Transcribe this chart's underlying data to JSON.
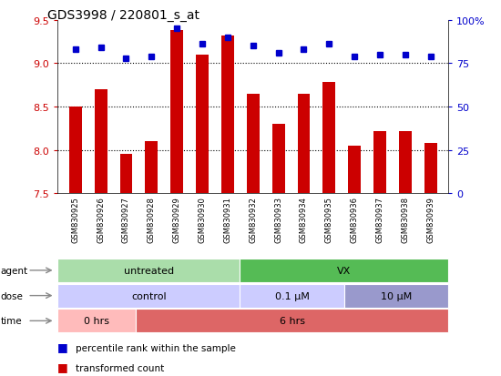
{
  "title": "GDS3998 / 220801_s_at",
  "samples": [
    "GSM830925",
    "GSM830926",
    "GSM830927",
    "GSM830928",
    "GSM830929",
    "GSM830930",
    "GSM830931",
    "GSM830932",
    "GSM830933",
    "GSM830934",
    "GSM830935",
    "GSM830936",
    "GSM830937",
    "GSM830938",
    "GSM830939"
  ],
  "transformed_counts": [
    8.5,
    8.7,
    7.95,
    8.1,
    9.38,
    9.1,
    9.32,
    8.65,
    8.3,
    8.65,
    8.78,
    8.05,
    8.22,
    8.22,
    8.08
  ],
  "percentile_ranks": [
    83,
    84,
    78,
    79,
    95,
    86,
    90,
    85,
    81,
    83,
    86,
    79,
    80,
    80,
    79
  ],
  "ylim_left": [
    7.5,
    9.5
  ],
  "ylim_right": [
    0,
    100
  ],
  "yticks_left": [
    7.5,
    8.0,
    8.5,
    9.0,
    9.5
  ],
  "yticks_right": [
    0,
    25,
    50,
    75,
    100
  ],
  "ytick_right_labels": [
    "0",
    "25",
    "50",
    "75",
    "100%"
  ],
  "grid_values": [
    8.0,
    8.5,
    9.0
  ],
  "bar_color": "#cc0000",
  "dot_color": "#0000cc",
  "bar_width": 0.5,
  "agent_labels": [
    {
      "label": "untreated",
      "start": 0,
      "end": 6,
      "color": "#aaddaa"
    },
    {
      "label": "VX",
      "start": 7,
      "end": 14,
      "color": "#55bb55"
    }
  ],
  "dose_labels": [
    {
      "label": "control",
      "start": 0,
      "end": 6,
      "color": "#ccccff"
    },
    {
      "label": "0.1 μM",
      "start": 7,
      "end": 10,
      "color": "#ccccff"
    },
    {
      "label": "10 μM",
      "start": 11,
      "end": 14,
      "color": "#9999cc"
    }
  ],
  "time_labels": [
    {
      "label": "0 hrs",
      "start": 0,
      "end": 2,
      "color": "#ffbbbb"
    },
    {
      "label": "6 hrs",
      "start": 3,
      "end": 14,
      "color": "#dd6666"
    }
  ],
  "legend_items": [
    {
      "color": "#cc0000",
      "label": "transformed count"
    },
    {
      "color": "#0000cc",
      "label": "percentile rank within the sample"
    }
  ],
  "left_tick_color": "#cc0000",
  "right_tick_color": "#0000cc",
  "background_color": "#ffffff",
  "plot_bg_color": "#ffffff"
}
